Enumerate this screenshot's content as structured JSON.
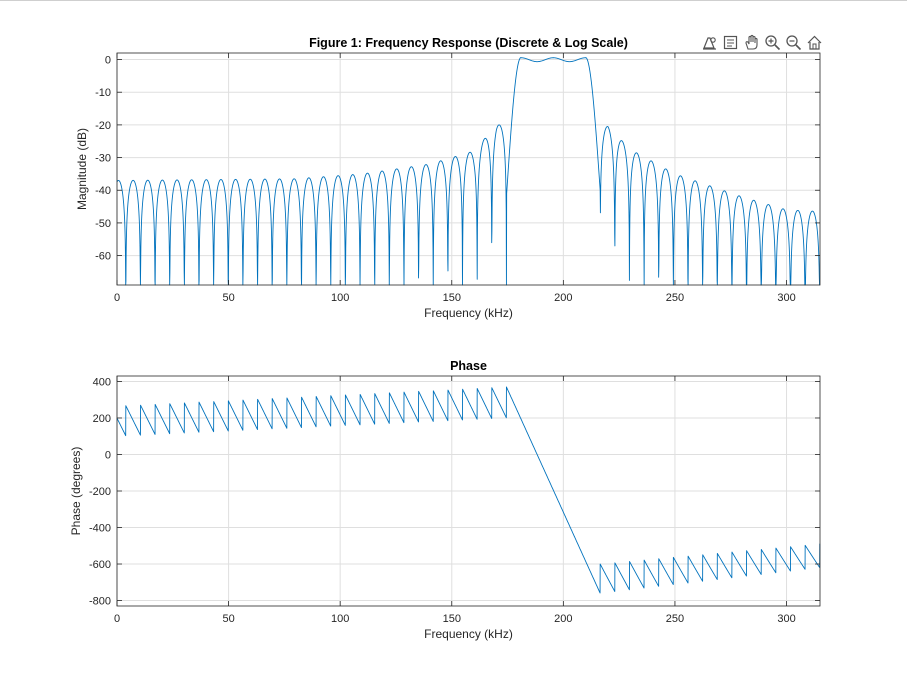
{
  "toolbar": {
    "icons": [
      "data-tips-icon",
      "brush-icon",
      "pan-hand-icon",
      "zoom-in-icon",
      "zoom-out-icon",
      "home-icon"
    ]
  },
  "chart_data": [
    {
      "type": "line",
      "title": "Figure 1: Frequency Response (Discrete & Log Scale)",
      "xlabel": "Frequency (kHz)",
      "ylabel": "Magnitude (dB)",
      "xlim": [
        0,
        315
      ],
      "ylim": [
        -69,
        2
      ],
      "xticks": [
        0,
        50,
        100,
        150,
        200,
        250,
        300
      ],
      "yticks": [
        0,
        -10,
        -20,
        -30,
        -40,
        -50,
        -60
      ],
      "grid": true,
      "color": "#0072BD",
      "series": [
        {
          "lobe_width_khz": 6.56,
          "passband_khz": [
            181,
            210
          ],
          "lower_edge_khz": 174.5,
          "upper_edge_khz": 216.5,
          "peak_db": [
            0.6,
            -0.3,
            0.1,
            -0.3,
            0.6
          ],
          "sidelobe_peaks_left": [
            [
              3,
              -37
            ],
            [
              80,
              -36.5
            ],
            [
              110,
              -35
            ],
            [
              140,
              -32
            ],
            [
              160,
              -28
            ],
            [
              170,
              -20
            ]
          ],
          "sidelobe_peaks_right": [
            [
              220,
              -20.5
            ],
            [
              230,
              -27.5
            ],
            [
              250,
              -35
            ],
            [
              280,
              -42
            ],
            [
              300,
              -46
            ],
            [
              315,
              -46.5
            ]
          ]
        }
      ]
    },
    {
      "type": "line",
      "title": "Phase",
      "xlabel": "Frequency (kHz)",
      "ylabel": "Phase (degrees)",
      "xlim": [
        0,
        315
      ],
      "ylim": [
        -830,
        430
      ],
      "xticks": [
        0,
        50,
        100,
        150,
        200,
        250,
        300
      ],
      "yticks": [
        400,
        200,
        0,
        -200,
        -400,
        -600,
        -800
      ],
      "grid": true,
      "color": "#0072BD",
      "series": [
        {
          "sawtooth_period_khz": 6.56,
          "left_band": {
            "x": [
              0,
              174.5
            ],
            "high": [
              265,
              370
            ],
            "low": [
              100,
              200
            ]
          },
          "transition": {
            "x": [
              174.5,
              216.5
            ],
            "y": [
              370,
              -760
            ]
          },
          "right_band": {
            "x": [
              216.5,
              315
            ],
            "high": [
              -600,
              -490
            ],
            "low": [
              -760,
              -620
            ]
          }
        }
      ]
    }
  ]
}
